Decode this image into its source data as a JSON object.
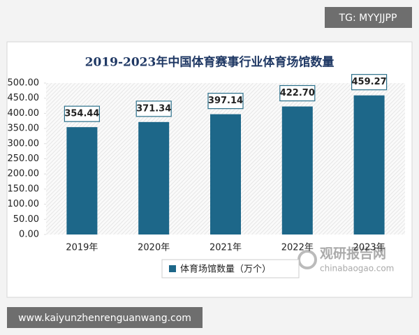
{
  "chart_data": {
    "type": "bar",
    "title": "2019-2023年中国体育赛事行业体育场馆数量",
    "categories": [
      "2019年",
      "2020年",
      "2021年",
      "2022年",
      "2023年"
    ],
    "series": [
      {
        "name": "体育场馆数量（万个）",
        "color": "#1d6789",
        "values": [
          354.44,
          371.34,
          397.14,
          422.7,
          459.27
        ],
        "value_labels": [
          "354.44",
          "371.34",
          "397.14",
          "422.70",
          "459.27"
        ]
      }
    ],
    "ylim": [
      0,
      500
    ],
    "yticks": [
      {
        "value": 0,
        "label": "0.00"
      },
      {
        "value": 50,
        "label": "50.00"
      },
      {
        "value": 100,
        "label": "100.00"
      },
      {
        "value": 150,
        "label": "150.00"
      },
      {
        "value": 200,
        "label": "200.00"
      },
      {
        "value": 250,
        "label": "250.00"
      },
      {
        "value": 300,
        "label": "300.00"
      },
      {
        "value": 350,
        "label": "350.00"
      },
      {
        "value": 400,
        "label": "400.00"
      },
      {
        "value": 450,
        "label": "450.00"
      },
      {
        "value": 500,
        "label": "500.00"
      }
    ],
    "legend": "bottom"
  },
  "overlay": {
    "top_tag": "TG: MYYJJPP",
    "bottom_url": "www.kaiyunzhenrenguanwang.com",
    "watermark_name": "观研报告网",
    "watermark_site": "chinabaogao.com"
  }
}
